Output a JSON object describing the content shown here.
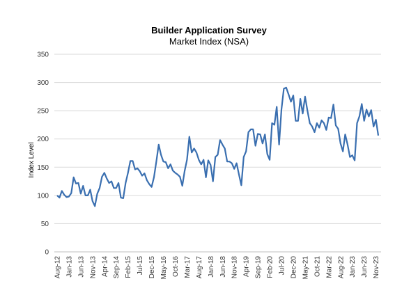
{
  "chart_data": {
    "type": "line",
    "title": "Builder Application Survey",
    "subtitle": "Market Index (NSA)",
    "xlabel": "",
    "ylabel": "Index Level",
    "ylim": [
      0,
      350
    ],
    "y_ticks": [
      0,
      50,
      100,
      150,
      200,
      250,
      300,
      350
    ],
    "x_start": "Aug-12",
    "x_end": "Nov-23",
    "x_tick_labels": [
      "Aug-12",
      "Jan-13",
      "Jun-13",
      "Nov-13",
      "Apr-14",
      "Sep-14",
      "Feb-15",
      "Jul-15",
      "Dec-15",
      "May-16",
      "Oct-16",
      "Mar-17",
      "Aug-17",
      "Jan-18",
      "Jun-18",
      "Nov-18",
      "Apr-19",
      "Sep-19",
      "Feb-20",
      "Jul-20",
      "Dec-20",
      "May-21",
      "Oct-21",
      "Mar-22",
      "Aug-22",
      "Jan-23",
      "Jun-23",
      "Nov-23"
    ],
    "grid": true,
    "legend": "none",
    "line_color": "#3a6fb0",
    "values": [
      100,
      96,
      108,
      101,
      97,
      98,
      104,
      132,
      121,
      122,
      103,
      117,
      100,
      100,
      110,
      90,
      81,
      103,
      113,
      133,
      140,
      130,
      122,
      125,
      113,
      113,
      122,
      96,
      95,
      122,
      140,
      161,
      161,
      146,
      148,
      143,
      135,
      139,
      127,
      120,
      115,
      132,
      160,
      190,
      172,
      160,
      159,
      148,
      155,
      144,
      140,
      137,
      133,
      117,
      143,
      163,
      204,
      176,
      183,
      176,
      163,
      155,
      163,
      132,
      162,
      154,
      125,
      168,
      172,
      198,
      190,
      183,
      160,
      160,
      157,
      147,
      157,
      137,
      118,
      168,
      178,
      212,
      217,
      217,
      188,
      209,
      208,
      192,
      208,
      173,
      163,
      228,
      225,
      257,
      190,
      252,
      289,
      291,
      279,
      266,
      277,
      232,
      232,
      271,
      245,
      275,
      250,
      228,
      222,
      212,
      228,
      220,
      233,
      228,
      216,
      238,
      237,
      261,
      224,
      218,
      192,
      178,
      208,
      190,
      168,
      171,
      162,
      228,
      240,
      262,
      232,
      252,
      240,
      251,
      222,
      234,
      206
    ]
  }
}
